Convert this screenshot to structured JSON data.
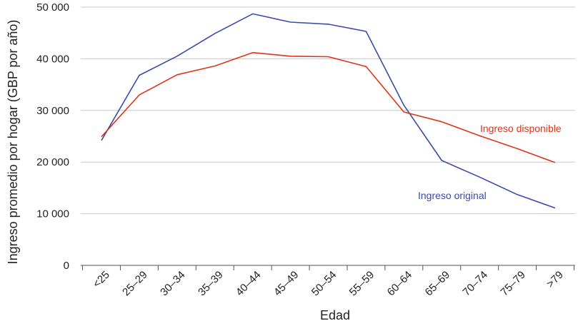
{
  "chart_data": {
    "type": "line",
    "title": "",
    "xlabel": "Edad",
    "ylabel": "Ingreso promedio por hogar (GBP por año)",
    "categories": [
      "<25",
      "25–29",
      "30–34",
      "35–39",
      "40–44",
      "45–49",
      "50–54",
      "55–59",
      "60–64",
      "65–69",
      "70–74",
      "75–79",
      ">79"
    ],
    "ylim": [
      0,
      50000
    ],
    "yticks": [
      0,
      10000,
      20000,
      30000,
      40000,
      50000
    ],
    "ytick_labels": [
      "0",
      "10 000",
      "20 000",
      "30 000",
      "40 000",
      "50 000"
    ],
    "grid": true,
    "legend": "inline labels",
    "series": [
      {
        "name": "Ingreso original",
        "color": "#3b4ba8",
        "values": [
          24200,
          36800,
          40500,
          44900,
          48700,
          47100,
          46700,
          45300,
          31000,
          20300,
          17100,
          13700,
          11100
        ]
      },
      {
        "name": "Ingreso disponible",
        "color": "#e0331a",
        "values": [
          24900,
          33000,
          36900,
          38600,
          41200,
          40500,
          40400,
          38500,
          29700,
          27800,
          25100,
          22600,
          19900
        ]
      }
    ]
  }
}
